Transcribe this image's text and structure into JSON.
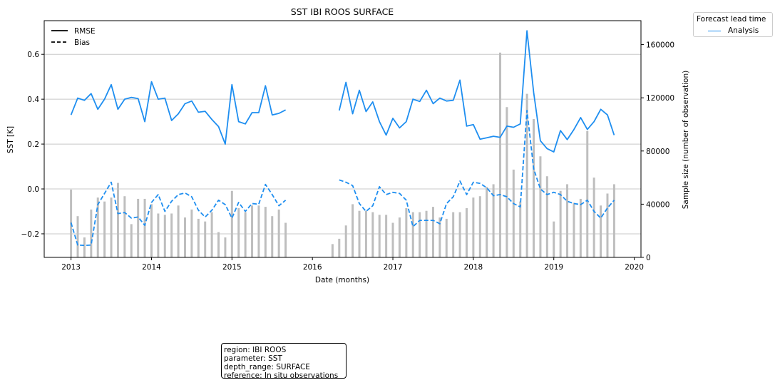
{
  "title": "SST IBI ROOS SURFACE",
  "xlabel": "Date (months)",
  "ylabel_left": "SST [K]",
  "ylabel_right": "Sample size (number of observation)",
  "legend_style": {
    "rmse": "RMSE",
    "bias": "Bias"
  },
  "legend_lead": {
    "title": "Forecast lead time",
    "item": "Analysis"
  },
  "info_box": [
    "region: IBI ROOS",
    "parameter: SST",
    "depth_range: SURFACE",
    "reference: In situ observations"
  ],
  "colors": {
    "series": "#1e8ef0",
    "bars": "#bebebe",
    "grid": "#c8c8c8"
  },
  "chart_data": {
    "type": "line",
    "title": "SST IBI ROOS SURFACE",
    "xlabel": "Date (months)",
    "ylabel": "SST [K]",
    "y2label": "Sample size (number of observation)",
    "xlim": [
      "2012-09",
      "2020-02"
    ],
    "ylim": [
      -0.305,
      0.75
    ],
    "y2lim": [
      0,
      178000
    ],
    "grid": true,
    "xticks": [
      "2013",
      "2014",
      "2015",
      "2016",
      "2017",
      "2018",
      "2019",
      "2020"
    ],
    "yticks": [
      -0.2,
      0.0,
      0.2,
      0.4,
      0.6
    ],
    "yticklabels": [
      "−0.2",
      "0.0",
      "0.2",
      "0.4",
      "0.6"
    ],
    "y2ticks": [
      0,
      40000,
      80000,
      120000,
      160000
    ],
    "legend": [
      "RMSE",
      "Bias"
    ],
    "legend_position": "top-left",
    "series": [
      {
        "name": "Analysis",
        "style": "solid",
        "kind": "RMSE",
        "segments": [
          {
            "x": [
              "2013-01",
              "2013-02",
              "2013-03",
              "2013-04",
              "2013-05",
              "2013-06",
              "2013-07",
              "2013-08",
              "2013-09",
              "2013-10",
              "2013-11",
              "2013-12",
              "2014-01",
              "2014-02",
              "2014-03",
              "2014-04",
              "2014-05",
              "2014-06",
              "2014-07",
              "2014-08",
              "2014-09",
              "2014-10",
              "2014-11",
              "2014-12",
              "2015-01",
              "2015-02",
              "2015-03",
              "2015-04",
              "2015-05",
              "2015-06",
              "2015-07",
              "2015-08",
              "2015-09"
            ],
            "y": [
              0.33,
              0.405,
              0.395,
              0.425,
              0.355,
              0.4,
              0.465,
              0.355,
              0.4,
              0.408,
              0.403,
              0.3,
              0.478,
              0.4,
              0.405,
              0.305,
              0.335,
              0.38,
              0.392,
              0.342,
              0.346,
              0.31,
              0.278,
              0.2,
              0.465,
              0.3,
              0.29,
              0.34,
              0.34,
              0.46,
              0.33,
              0.337,
              0.352
            ]
          },
          {
            "x": [
              "2016-05",
              "2016-06",
              "2016-07",
              "2016-08",
              "2016-09",
              "2016-10",
              "2016-11",
              "2016-12",
              "2017-01",
              "2017-02",
              "2017-03",
              "2017-04",
              "2017-05",
              "2017-06",
              "2017-07",
              "2017-08",
              "2017-09",
              "2017-10",
              "2017-11",
              "2017-12",
              "2018-01",
              "2018-02",
              "2018-03",
              "2018-04",
              "2018-05",
              "2018-06",
              "2018-07",
              "2018-08",
              "2018-09",
              "2018-10",
              "2018-11",
              "2018-12",
              "2019-01",
              "2019-02",
              "2019-03",
              "2019-04",
              "2019-05",
              "2019-06",
              "2019-07",
              "2019-08",
              "2019-09",
              "2019-10"
            ],
            "y": [
              0.35,
              0.475,
              0.335,
              0.44,
              0.345,
              0.388,
              0.3,
              0.24,
              0.315,
              0.272,
              0.3,
              0.4,
              0.39,
              0.44,
              0.38,
              0.405,
              0.392,
              0.395,
              0.485,
              0.28,
              0.287,
              0.222,
              0.228,
              0.235,
              0.23,
              0.28,
              0.275,
              0.29,
              0.705,
              0.43,
              0.215,
              0.18,
              0.165,
              0.26,
              0.22,
              0.265,
              0.318,
              0.265,
              0.3,
              0.355,
              0.33,
              0.24
            ]
          }
        ]
      },
      {
        "name": "Analysis",
        "style": "dashed",
        "kind": "Bias",
        "segments": [
          {
            "x": [
              "2013-01",
              "2013-02",
              "2013-03",
              "2013-04",
              "2013-05",
              "2013-06",
              "2013-07",
              "2013-08",
              "2013-09",
              "2013-10",
              "2013-11",
              "2013-12",
              "2014-01",
              "2014-02",
              "2014-03",
              "2014-04",
              "2014-05",
              "2014-06",
              "2014-07",
              "2014-08",
              "2014-09",
              "2014-10",
              "2014-11",
              "2014-12",
              "2015-01",
              "2015-02",
              "2015-03",
              "2015-04",
              "2015-05",
              "2015-06",
              "2015-07",
              "2015-08",
              "2015-09"
            ],
            "y": [
              -0.15,
              -0.25,
              -0.252,
              -0.25,
              -0.07,
              -0.02,
              0.03,
              -0.11,
              -0.105,
              -0.13,
              -0.125,
              -0.162,
              -0.06,
              -0.025,
              -0.1,
              -0.055,
              -0.025,
              -0.018,
              -0.035,
              -0.095,
              -0.125,
              -0.095,
              -0.05,
              -0.07,
              -0.13,
              -0.06,
              -0.1,
              -0.065,
              -0.068,
              0.02,
              -0.025,
              -0.075,
              -0.05
            ]
          },
          {
            "x": [
              "2016-05",
              "2016-06",
              "2016-07",
              "2016-08",
              "2016-09",
              "2016-10",
              "2016-11",
              "2016-12",
              "2017-01",
              "2017-02",
              "2017-03",
              "2017-04",
              "2017-05",
              "2017-06",
              "2017-07",
              "2017-08",
              "2017-09",
              "2017-10",
              "2017-11",
              "2017-12",
              "2018-01",
              "2018-02",
              "2018-03",
              "2018-04",
              "2018-05",
              "2018-06",
              "2018-07",
              "2018-08",
              "2018-09",
              "2018-10",
              "2018-11",
              "2018-12",
              "2019-01",
              "2019-02",
              "2019-03",
              "2019-04",
              "2019-05",
              "2019-06",
              "2019-07",
              "2019-08",
              "2019-09",
              "2019-10"
            ],
            "y": [
              0.04,
              0.03,
              0.015,
              -0.065,
              -0.1,
              -0.075,
              0.01,
              -0.025,
              -0.015,
              -0.02,
              -0.05,
              -0.168,
              -0.14,
              -0.14,
              -0.14,
              -0.155,
              -0.065,
              -0.035,
              0.035,
              -0.025,
              0.03,
              0.025,
              0.005,
              -0.03,
              -0.025,
              -0.035,
              -0.065,
              -0.08,
              0.35,
              0.09,
              0.0,
              -0.025,
              -0.015,
              -0.025,
              -0.055,
              -0.065,
              -0.07,
              -0.05,
              -0.1,
              -0.13,
              -0.085,
              -0.05
            ]
          }
        ]
      }
    ],
    "bars": {
      "name": "Sample size",
      "axis": "right",
      "x": [
        "2013-01",
        "2013-02",
        "2013-03",
        "2013-04",
        "2013-05",
        "2013-06",
        "2013-07",
        "2013-08",
        "2013-09",
        "2013-10",
        "2013-11",
        "2013-12",
        "2014-01",
        "2014-02",
        "2014-03",
        "2014-04",
        "2014-05",
        "2014-06",
        "2014-07",
        "2014-08",
        "2014-09",
        "2014-10",
        "2014-11",
        "2014-12",
        "2015-01",
        "2015-02",
        "2015-03",
        "2015-04",
        "2015-05",
        "2015-06",
        "2015-07",
        "2015-08",
        "2015-09",
        "2016-04",
        "2016-05",
        "2016-06",
        "2016-07",
        "2016-08",
        "2016-09",
        "2016-10",
        "2016-11",
        "2016-12",
        "2017-01",
        "2017-02",
        "2017-03",
        "2017-04",
        "2017-05",
        "2017-06",
        "2017-07",
        "2017-08",
        "2017-09",
        "2017-10",
        "2017-11",
        "2017-12",
        "2018-01",
        "2018-02",
        "2018-03",
        "2018-04",
        "2018-05",
        "2018-06",
        "2018-07",
        "2018-08",
        "2018-09",
        "2018-10",
        "2018-11",
        "2018-12",
        "2019-01",
        "2019-02",
        "2019-03",
        "2019-04",
        "2019-05",
        "2019-06",
        "2019-07",
        "2019-08",
        "2019-09",
        "2019-10"
      ],
      "values": [
        51000,
        31000,
        15000,
        36000,
        45000,
        42000,
        45000,
        56000,
        46000,
        25000,
        44000,
        44000,
        40000,
        33000,
        32000,
        33000,
        39000,
        30000,
        36000,
        29000,
        27000,
        34000,
        19000,
        15000,
        50000,
        37000,
        34000,
        39000,
        39000,
        38000,
        31000,
        36000,
        26000,
        10000,
        14000,
        24000,
        40000,
        35000,
        35000,
        34000,
        32000,
        32000,
        26000,
        30000,
        37000,
        34000,
        34000,
        35000,
        38000,
        30000,
        29000,
        34000,
        34000,
        37000,
        45000,
        46000,
        53000,
        55000,
        154000,
        113000,
        66000,
        42000,
        123000,
        104000,
        76000,
        61000,
        27000,
        50000,
        55000,
        41000,
        44000,
        95000,
        60000,
        39000,
        48000,
        55000
      ]
    }
  }
}
